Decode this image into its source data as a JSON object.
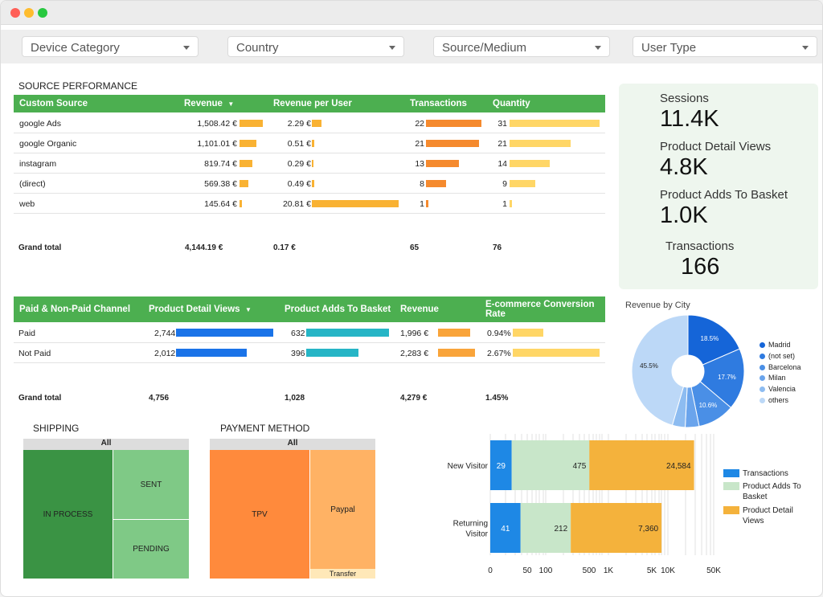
{
  "filters": [
    {
      "label": "Device Category"
    },
    {
      "label": "Country"
    },
    {
      "label": "Source/Medium"
    },
    {
      "label": "User Type"
    }
  ],
  "source_performance": {
    "title": "SOURCE PERFORMANCE",
    "headers": [
      "Custom Source",
      "Revenue",
      "Revenue per User",
      "Transactions",
      "Quantity"
    ],
    "sort_arrow": "▼",
    "rows": [
      {
        "source": "google Ads",
        "revenue": "1,508.42 €",
        "rev_per_user": "2.29 €",
        "transactions": "22",
        "quantity": "31",
        "rev_frac": 1.0,
        "rpu_frac": 0.11,
        "tx_frac": 1.0,
        "qty_frac": 1.0
      },
      {
        "source": "google Organic",
        "revenue": "1,101.01 €",
        "rev_per_user": "0.51 €",
        "transactions": "21",
        "quantity": "21",
        "rev_frac": 0.73,
        "rpu_frac": 0.025,
        "tx_frac": 0.95,
        "qty_frac": 0.68
      },
      {
        "source": "instagram",
        "revenue": "819.74 €",
        "rev_per_user": "0.29 €",
        "transactions": "13",
        "quantity": "14",
        "rev_frac": 0.54,
        "rpu_frac": 0.014,
        "tx_frac": 0.59,
        "qty_frac": 0.45
      },
      {
        "source": "(direct)",
        "revenue": "569.38 €",
        "rev_per_user": "0.49 €",
        "transactions": "8",
        "quantity": "9",
        "rev_frac": 0.38,
        "rpu_frac": 0.024,
        "tx_frac": 0.36,
        "qty_frac": 0.29
      },
      {
        "source": "web",
        "revenue": "145.64 €",
        "rev_per_user": "20.81 €",
        "transactions": "1",
        "quantity": "1",
        "rev_frac": 0.1,
        "rpu_frac": 1.0,
        "tx_frac": 0.05,
        "qty_frac": 0.03
      }
    ],
    "grand_total": {
      "label": "Grand total",
      "revenue": "4,144.19 €",
      "rev_per_user": "0.17 €",
      "transactions": "65",
      "quantity": "76"
    }
  },
  "channel_table": {
    "headers": [
      "Paid & Non-Paid Channel",
      "Product Detail Views",
      "Product Adds To Basket",
      "Revenue",
      "E-commerce Conversion Rate"
    ],
    "sort_arrow": "▼",
    "rows": [
      {
        "channel": "Paid",
        "views": "2,744",
        "adds": "632",
        "revenue": "1,996 €",
        "conv": "0.94%",
        "views_frac": 1.0,
        "adds_frac": 1.0,
        "rev_frac": 0.87,
        "conv_frac": 0.35
      },
      {
        "channel": "Not Paid",
        "views": "2,012",
        "adds": "396",
        "revenue": "2,283 €",
        "conv": "2.67%",
        "views_frac": 0.73,
        "adds_frac": 0.63,
        "rev_frac": 1.0,
        "conv_frac": 1.0
      }
    ],
    "grand_total": {
      "label": "Grand total",
      "views": "4,756",
      "adds": "1,028",
      "revenue": "4,279 €",
      "conv": "1.45%"
    }
  },
  "kpis": [
    {
      "label": "Sessions",
      "value": "11.4K"
    },
    {
      "label": "Product Detail Views",
      "value": "4.8K"
    },
    {
      "label": "Product Adds To Basket",
      "value": "1.0K"
    },
    {
      "label": "Transactions",
      "value": "166"
    }
  ],
  "revenue_by_city": {
    "title": "Revenue by City",
    "legend": [
      "Madrid",
      "(not set)",
      "Barcelona",
      "Milan",
      "Valencia",
      "others"
    ],
    "colors": [
      "#1565d8",
      "#2f7be0",
      "#4a8fe6",
      "#6aa4ec",
      "#8dbcf1",
      "#bcd8f7"
    ],
    "chart_data": {
      "type": "pie",
      "categories": [
        "Madrid",
        "(not set)",
        "Barcelona",
        "Milan",
        "Valencia",
        "others"
      ],
      "values": [
        18.5,
        17.7,
        10.6,
        4.0,
        3.7,
        45.5
      ],
      "labels": [
        "18.5%",
        "17.7%",
        "10.6%",
        "",
        "",
        "45.5%"
      ]
    }
  },
  "shipping": {
    "title": "SHIPPING",
    "all_label": "All",
    "cells": [
      "IN PROCESS",
      "SENT",
      "PENDING"
    ]
  },
  "payment": {
    "title": "PAYMENT METHOD",
    "all_label": "All",
    "cells": [
      "TPV",
      "Paypal",
      "Transfer"
    ]
  },
  "user_type_chart": {
    "chart_data": {
      "type": "bar",
      "orientation": "horizontal-stacked",
      "scale": "log",
      "categories": [
        "New Visitor",
        "Returning Visitor"
      ],
      "series": [
        {
          "name": "Transactions",
          "values": [
            29,
            41
          ],
          "labels": [
            "29",
            "41"
          ],
          "color": "#1e88e5"
        },
        {
          "name": "Product Adds To Basket",
          "values": [
            475,
            212
          ],
          "labels": [
            "475",
            "212"
          ],
          "color": "#c8e6c9"
        },
        {
          "name": "Product Detail Views",
          "values": [
            24584,
            7360
          ],
          "labels": [
            "24,584",
            "7,360"
          ],
          "color": "#f4b23c"
        }
      ],
      "xticks": [
        "0",
        "50",
        "100",
        "500",
        "1K",
        "5K",
        "10K",
        "50K"
      ]
    },
    "category_lines": [
      [
        "New Visitor"
      ],
      [
        "Returning",
        "Visitor"
      ]
    ],
    "legend_lines": [
      [
        "Transactions"
      ],
      [
        "Product Adds To",
        "Basket"
      ],
      [
        "Product Detail",
        "Views"
      ]
    ]
  }
}
